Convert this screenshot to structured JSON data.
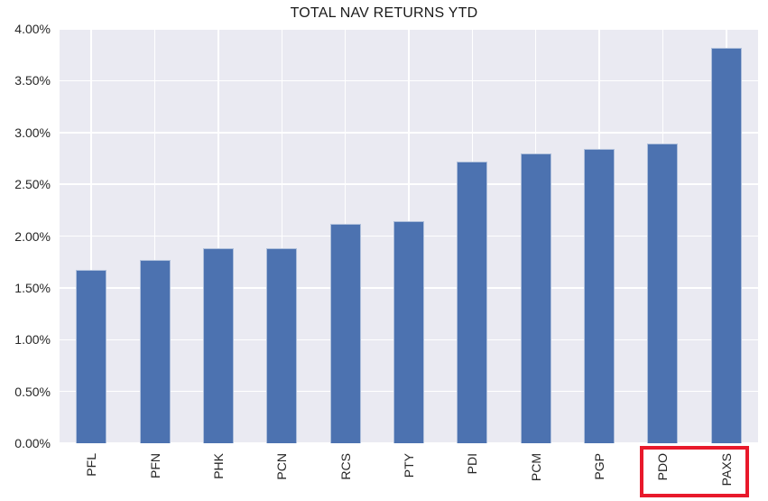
{
  "colors": {
    "bar": "#4c72b0",
    "plot_bg": "#eaeaf2",
    "grid": "#ffffff",
    "highlight_box": "#e8192b",
    "text": "#262626",
    "title_text": "#1a1a1a"
  },
  "chart_data": {
    "type": "bar",
    "title": "TOTAL NAV RETURNS YTD",
    "xlabel": "",
    "ylabel": "",
    "categories": [
      "PFL",
      "PFN",
      "PHK",
      "PCN",
      "RCS",
      "PTY",
      "PDI",
      "PCM",
      "PGP",
      "PDO",
      "PAXS"
    ],
    "values": [
      1.67,
      1.77,
      1.88,
      1.88,
      2.12,
      2.14,
      2.72,
      2.8,
      2.84,
      2.89,
      3.82
    ],
    "value_unit": "percent",
    "ylim": [
      0,
      4
    ],
    "ytick_step": 0.5,
    "ytick_labels": [
      "0.00%",
      "0.50%",
      "1.00%",
      "1.50%",
      "2.00%",
      "2.50%",
      "3.00%",
      "3.50%",
      "4.00%"
    ],
    "grid": true,
    "legend": false,
    "xtick_rotation_degrees": 90,
    "highlighted_categories": [
      "PDO",
      "PAXS"
    ],
    "highlight_note": "red rectangle drawn around the PDO and PAXS x-axis labels"
  }
}
